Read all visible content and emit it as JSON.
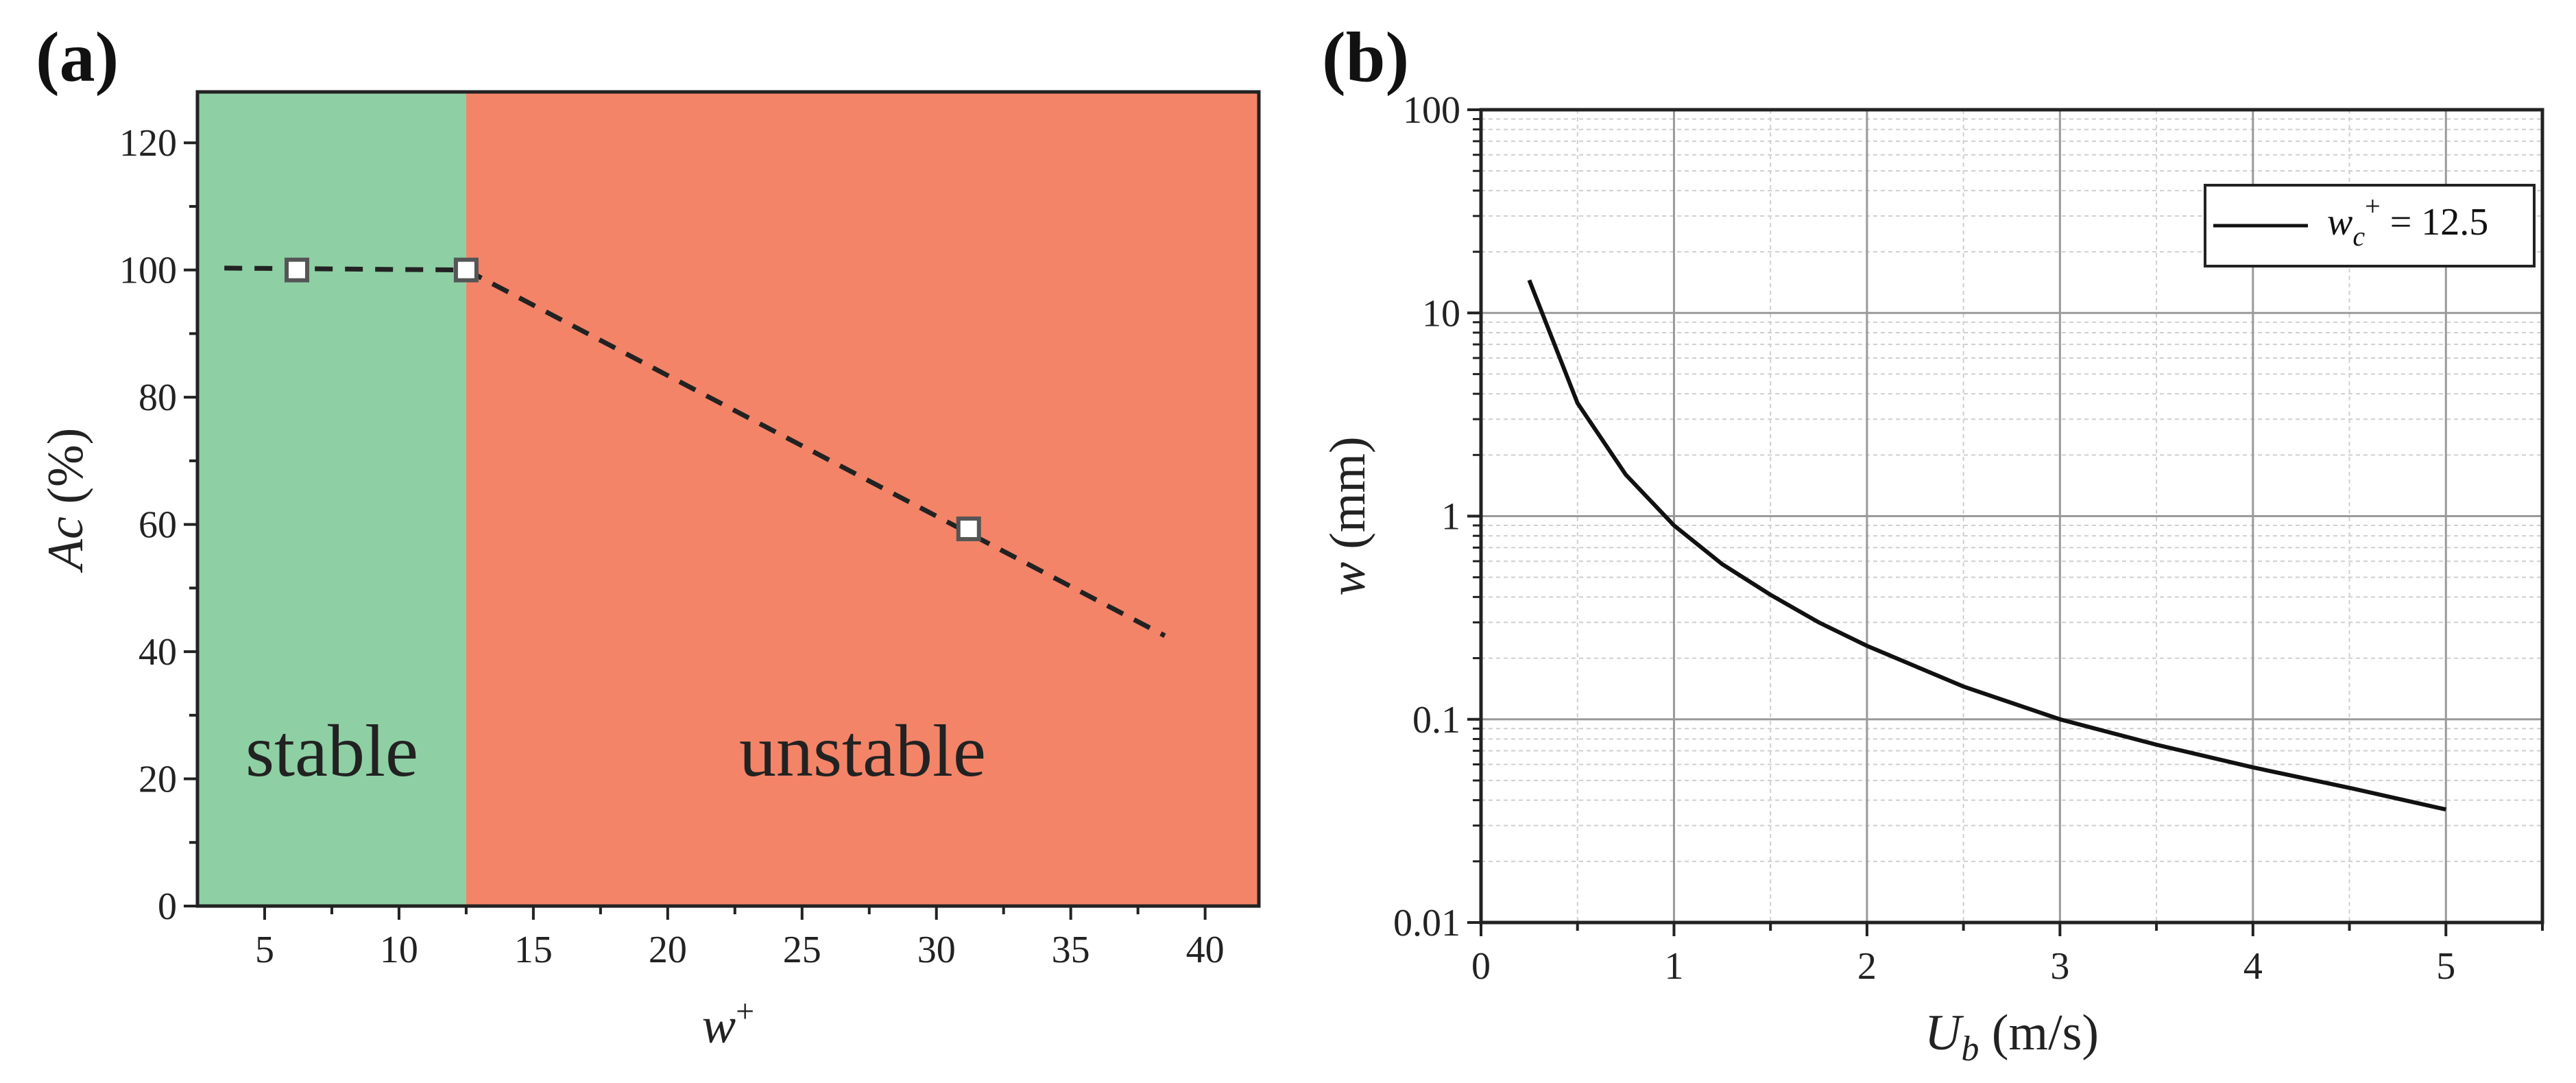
{
  "figure": {
    "panel_a_label": "(a)",
    "panel_b_label": "(b)"
  },
  "chart_data": [
    {
      "type": "line",
      "panel": "(a)",
      "xlabel": "w",
      "xlabel_sup": "+",
      "ylabel_italic": "Ac",
      "ylabel_rest": " (%)",
      "xlim": [
        2.5,
        42
      ],
      "ylim": [
        0,
        128
      ],
      "x_ticks": [
        5,
        10,
        15,
        20,
        25,
        30,
        35,
        40
      ],
      "y_ticks": [
        0,
        20,
        40,
        60,
        80,
        100,
        120
      ],
      "regions": [
        {
          "name": "stable",
          "x_range": [
            2.5,
            12.5
          ],
          "color": "#8ecfa4"
        },
        {
          "name": "unstable",
          "x_range": [
            12.5,
            42
          ],
          "color": "#f38468"
        }
      ],
      "series": [
        {
          "name": "dashed trend",
          "style": "dashed",
          "x": [
            3.5,
            12.5,
            38.5
          ],
          "y": [
            100.3,
            100,
            42.5
          ]
        },
        {
          "name": "markers",
          "style": "square-marker",
          "x": [
            6.2,
            12.5,
            31.2
          ],
          "y": [
            100,
            100,
            59.3
          ]
        }
      ]
    },
    {
      "type": "line",
      "panel": "(b)",
      "xlabel_main": "U",
      "xlabel_sub": "b",
      "xlabel_rest": " (m/s)",
      "ylabel_italic": "w",
      "ylabel_rest": " (mm)",
      "xlim": [
        0,
        5.5
      ],
      "yscale": "log",
      "ylim": [
        0.01,
        100
      ],
      "x_ticks": [
        "0",
        "1",
        "2",
        "3",
        "4",
        "5"
      ],
      "y_ticks": [
        "0.01",
        "0.1",
        "1",
        "10",
        "100"
      ],
      "grid": true,
      "legend": {
        "position": "top-right",
        "label_main": "w",
        "label_sub": "c",
        "label_sup": "+",
        "label_value": " = 12.5"
      },
      "series": [
        {
          "name": "wc+ = 12.5",
          "x": [
            0.25,
            0.5,
            0.75,
            1.0,
            1.25,
            1.5,
            1.75,
            2.0,
            2.5,
            3.0,
            3.5,
            4.0,
            4.5,
            5.0
          ],
          "y": [
            14.5,
            3.6,
            1.6,
            0.9,
            0.58,
            0.41,
            0.3,
            0.23,
            0.145,
            0.1,
            0.075,
            0.058,
            0.046,
            0.036
          ]
        }
      ]
    }
  ]
}
